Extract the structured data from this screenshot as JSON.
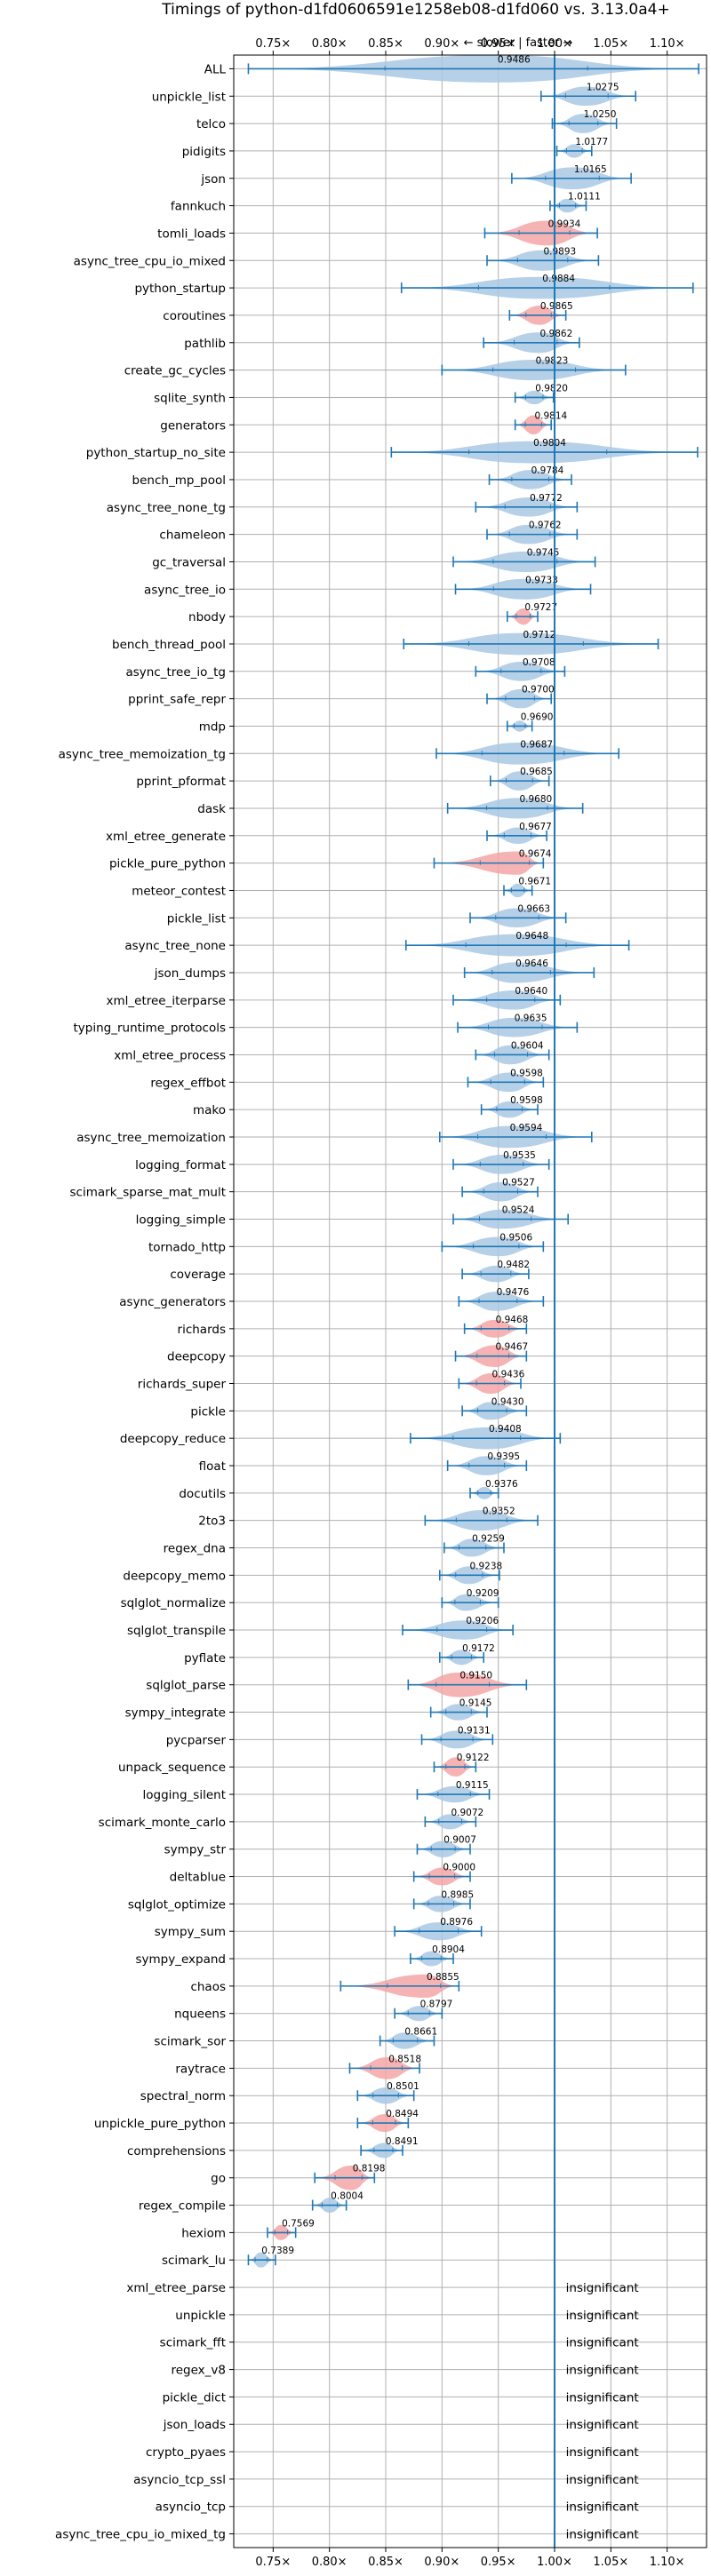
{
  "chart_data": {
    "type": "violin",
    "title": "Timings of python-d1fd0606591e1258eb08-d1fd060 vs. 3.13.0a4+",
    "annotation": "← slower | faster →",
    "xlim": [
      0.715,
      1.135
    ],
    "xticks": [
      0.75,
      0.8,
      0.85,
      0.9,
      0.95,
      1.0,
      1.05,
      1.1
    ],
    "xtick_labels": [
      "0.75×",
      "0.80×",
      "0.85×",
      "0.90×",
      "0.95×",
      "1.00×",
      "1.05×",
      "1.10×"
    ],
    "reference_line": 1.0,
    "grid": true,
    "insignificant_label": "insignificant",
    "colors": {
      "blue_fill": "#a9c8e4",
      "red_fill": "#f4a6a6",
      "line": "#1f77b4"
    },
    "benchmarks": [
      {
        "name": "ALL",
        "value": 0.9486,
        "min": 0.728,
        "max": 1.128,
        "color": "blue",
        "width": 1.0
      },
      {
        "name": "unpickle_list",
        "value": 1.0275,
        "min": 0.988,
        "max": 1.072,
        "color": "blue",
        "width": 0.7
      },
      {
        "name": "telco",
        "value": 1.025,
        "min": 0.998,
        "max": 1.055,
        "color": "blue",
        "width": 0.7
      },
      {
        "name": "pidigits",
        "value": 1.0177,
        "min": 1.002,
        "max": 1.033,
        "color": "blue",
        "width": 0.5
      },
      {
        "name": "json",
        "value": 1.0165,
        "min": 0.962,
        "max": 1.068,
        "color": "blue",
        "width": 0.8
      },
      {
        "name": "fannkuch",
        "value": 1.0111,
        "min": 0.996,
        "max": 1.028,
        "color": "blue",
        "width": 0.5
      },
      {
        "name": "tomli_loads",
        "value": 0.9934,
        "min": 0.938,
        "max": 1.038,
        "color": "red",
        "width": 0.9
      },
      {
        "name": "async_tree_cpu_io_mixed",
        "value": 0.9893,
        "min": 0.94,
        "max": 1.039,
        "color": "blue",
        "width": 0.75
      },
      {
        "name": "python_startup",
        "value": 0.9884,
        "min": 0.864,
        "max": 1.123,
        "color": "blue",
        "width": 0.8
      },
      {
        "name": "coroutines",
        "value": 0.9865,
        "min": 0.96,
        "max": 1.01,
        "color": "red",
        "width": 0.7
      },
      {
        "name": "pathlib",
        "value": 0.9862,
        "min": 0.937,
        "max": 1.022,
        "color": "blue",
        "width": 0.75
      },
      {
        "name": "create_gc_cycles",
        "value": 0.9823,
        "min": 0.9,
        "max": 1.063,
        "color": "blue",
        "width": 0.75
      },
      {
        "name": "sqlite_synth",
        "value": 0.982,
        "min": 0.965,
        "max": 0.999,
        "color": "blue",
        "width": 0.5
      },
      {
        "name": "generators",
        "value": 0.9814,
        "min": 0.965,
        "max": 0.997,
        "color": "red",
        "width": 0.7
      },
      {
        "name": "python_startup_no_site",
        "value": 0.9804,
        "min": 0.855,
        "max": 1.127,
        "color": "blue",
        "width": 0.8
      },
      {
        "name": "bench_mp_pool",
        "value": 0.9784,
        "min": 0.942,
        "max": 1.015,
        "color": "blue",
        "width": 0.7
      },
      {
        "name": "async_tree_none_tg",
        "value": 0.9772,
        "min": 0.93,
        "max": 1.02,
        "color": "blue",
        "width": 0.7
      },
      {
        "name": "chameleon",
        "value": 0.9762,
        "min": 0.94,
        "max": 1.02,
        "color": "blue",
        "width": 0.7
      },
      {
        "name": "gc_traversal",
        "value": 0.9745,
        "min": 0.91,
        "max": 1.036,
        "color": "blue",
        "width": 0.75
      },
      {
        "name": "async_tree_io",
        "value": 0.9733,
        "min": 0.912,
        "max": 1.032,
        "color": "blue",
        "width": 0.75
      },
      {
        "name": "nbody",
        "value": 0.9727,
        "min": 0.958,
        "max": 0.985,
        "color": "red",
        "width": 0.6
      },
      {
        "name": "bench_thread_pool",
        "value": 0.9712,
        "min": 0.866,
        "max": 1.092,
        "color": "blue",
        "width": 0.8
      },
      {
        "name": "async_tree_io_tg",
        "value": 0.9708,
        "min": 0.93,
        "max": 1.009,
        "color": "blue",
        "width": 0.7
      },
      {
        "name": "pprint_safe_repr",
        "value": 0.97,
        "min": 0.94,
        "max": 0.997,
        "color": "blue",
        "width": 0.7
      },
      {
        "name": "mdp",
        "value": 0.969,
        "min": 0.958,
        "max": 0.98,
        "color": "blue",
        "width": 0.4
      },
      {
        "name": "async_tree_memoization_tg",
        "value": 0.9687,
        "min": 0.895,
        "max": 1.057,
        "color": "blue",
        "width": 0.8
      },
      {
        "name": "pprint_pformat",
        "value": 0.9685,
        "min": 0.943,
        "max": 0.995,
        "color": "blue",
        "width": 0.7
      },
      {
        "name": "dask",
        "value": 0.968,
        "min": 0.905,
        "max": 1.025,
        "color": "blue",
        "width": 0.75
      },
      {
        "name": "xml_etree_generate",
        "value": 0.9677,
        "min": 0.94,
        "max": 0.993,
        "color": "blue",
        "width": 0.6
      },
      {
        "name": "pickle_pure_python",
        "value": 0.9674,
        "min": 0.893,
        "max": 0.99,
        "color": "red",
        "width": 0.85
      },
      {
        "name": "meteor_contest",
        "value": 0.9671,
        "min": 0.955,
        "max": 0.98,
        "color": "blue",
        "width": 0.5
      },
      {
        "name": "pickle_list",
        "value": 0.9663,
        "min": 0.925,
        "max": 1.01,
        "color": "blue",
        "width": 0.7
      },
      {
        "name": "async_tree_none",
        "value": 0.9648,
        "min": 0.868,
        "max": 1.066,
        "color": "blue",
        "width": 0.8
      },
      {
        "name": "json_dumps",
        "value": 0.9646,
        "min": 0.92,
        "max": 1.035,
        "color": "blue",
        "width": 0.75
      },
      {
        "name": "xml_etree_iterparse",
        "value": 0.964,
        "min": 0.91,
        "max": 1.005,
        "color": "blue",
        "width": 0.7
      },
      {
        "name": "typing_runtime_protocols",
        "value": 0.9635,
        "min": 0.914,
        "max": 1.02,
        "color": "blue",
        "width": 0.7
      },
      {
        "name": "xml_etree_process",
        "value": 0.9604,
        "min": 0.93,
        "max": 0.995,
        "color": "blue",
        "width": 0.7
      },
      {
        "name": "regex_effbot",
        "value": 0.9598,
        "min": 0.923,
        "max": 0.99,
        "color": "blue",
        "width": 0.7
      },
      {
        "name": "mako",
        "value": 0.9598,
        "min": 0.935,
        "max": 0.985,
        "color": "blue",
        "width": 0.6
      },
      {
        "name": "async_tree_memoization",
        "value": 0.9594,
        "min": 0.898,
        "max": 1.033,
        "color": "blue",
        "width": 0.8
      },
      {
        "name": "logging_format",
        "value": 0.9535,
        "min": 0.91,
        "max": 0.995,
        "color": "blue",
        "width": 0.7
      },
      {
        "name": "scimark_sparse_mat_mult",
        "value": 0.9527,
        "min": 0.918,
        "max": 0.985,
        "color": "blue",
        "width": 0.7
      },
      {
        "name": "logging_simple",
        "value": 0.9524,
        "min": 0.91,
        "max": 1.012,
        "color": "blue",
        "width": 0.7
      },
      {
        "name": "tornado_http",
        "value": 0.9506,
        "min": 0.9,
        "max": 0.99,
        "color": "blue",
        "width": 0.7
      },
      {
        "name": "coverage",
        "value": 0.9482,
        "min": 0.918,
        "max": 0.977,
        "color": "blue",
        "width": 0.6
      },
      {
        "name": "async_generators",
        "value": 0.9476,
        "min": 0.915,
        "max": 0.99,
        "color": "blue",
        "width": 0.7
      },
      {
        "name": "richards",
        "value": 0.9468,
        "min": 0.92,
        "max": 0.975,
        "color": "red",
        "width": 0.65
      },
      {
        "name": "deepcopy",
        "value": 0.9467,
        "min": 0.912,
        "max": 0.975,
        "color": "red",
        "width": 0.8
      },
      {
        "name": "richards_super",
        "value": 0.9436,
        "min": 0.915,
        "max": 0.97,
        "color": "red",
        "width": 0.75
      },
      {
        "name": "pickle",
        "value": 0.943,
        "min": 0.918,
        "max": 0.975,
        "color": "blue",
        "width": 0.65
      },
      {
        "name": "deepcopy_reduce",
        "value": 0.9408,
        "min": 0.872,
        "max": 1.005,
        "color": "blue",
        "width": 0.8
      },
      {
        "name": "float",
        "value": 0.9395,
        "min": 0.905,
        "max": 0.975,
        "color": "blue",
        "width": 0.7
      },
      {
        "name": "docutils",
        "value": 0.9376,
        "min": 0.925,
        "max": 0.95,
        "color": "blue",
        "width": 0.45
      },
      {
        "name": "2to3",
        "value": 0.9352,
        "min": 0.885,
        "max": 0.985,
        "color": "blue",
        "width": 0.75
      },
      {
        "name": "regex_dna",
        "value": 0.9259,
        "min": 0.902,
        "max": 0.955,
        "color": "blue",
        "width": 0.65
      },
      {
        "name": "deepcopy_memo",
        "value": 0.9238,
        "min": 0.898,
        "max": 0.951,
        "color": "blue",
        "width": 0.65
      },
      {
        "name": "sqlglot_normalize",
        "value": 0.9209,
        "min": 0.9,
        "max": 0.95,
        "color": "blue",
        "width": 0.6
      },
      {
        "name": "sqlglot_transpile",
        "value": 0.9206,
        "min": 0.865,
        "max": 0.963,
        "color": "blue",
        "width": 0.7
      },
      {
        "name": "pyflate",
        "value": 0.9172,
        "min": 0.898,
        "max": 0.937,
        "color": "blue",
        "width": 0.55
      },
      {
        "name": "sqlglot_parse",
        "value": 0.915,
        "min": 0.87,
        "max": 0.975,
        "color": "red",
        "width": 0.9
      },
      {
        "name": "sympy_integrate",
        "value": 0.9145,
        "min": 0.89,
        "max": 0.94,
        "color": "blue",
        "width": 0.6
      },
      {
        "name": "pycparser",
        "value": 0.9131,
        "min": 0.882,
        "max": 0.945,
        "color": "blue",
        "width": 0.65
      },
      {
        "name": "unpack_sequence",
        "value": 0.9122,
        "min": 0.893,
        "max": 0.93,
        "color": "red",
        "width": 0.7
      },
      {
        "name": "logging_silent",
        "value": 0.9115,
        "min": 0.878,
        "max": 0.942,
        "color": "blue",
        "width": 0.6
      },
      {
        "name": "scimark_monte_carlo",
        "value": 0.9072,
        "min": 0.885,
        "max": 0.93,
        "color": "blue",
        "width": 0.55
      },
      {
        "name": "sympy_str",
        "value": 0.9007,
        "min": 0.878,
        "max": 0.925,
        "color": "blue",
        "width": 0.6
      },
      {
        "name": "deltablue",
        "value": 0.9,
        "min": 0.875,
        "max": 0.925,
        "color": "red",
        "width": 0.65
      },
      {
        "name": "sqlglot_optimize",
        "value": 0.8985,
        "min": 0.875,
        "max": 0.925,
        "color": "blue",
        "width": 0.6
      },
      {
        "name": "sympy_sum",
        "value": 0.8976,
        "min": 0.858,
        "max": 0.935,
        "color": "blue",
        "width": 0.65
      },
      {
        "name": "sympy_expand",
        "value": 0.8904,
        "min": 0.872,
        "max": 0.91,
        "color": "blue",
        "width": 0.55
      },
      {
        "name": "chaos",
        "value": 0.8855,
        "min": 0.81,
        "max": 0.915,
        "color": "red",
        "width": 0.85
      },
      {
        "name": "nqueens",
        "value": 0.8797,
        "min": 0.858,
        "max": 0.9,
        "color": "blue",
        "width": 0.55
      },
      {
        "name": "scimark_sor",
        "value": 0.8661,
        "min": 0.845,
        "max": 0.893,
        "color": "blue",
        "width": 0.6
      },
      {
        "name": "raytrace",
        "value": 0.8518,
        "min": 0.818,
        "max": 0.88,
        "color": "red",
        "width": 0.8
      },
      {
        "name": "spectral_norm",
        "value": 0.8501,
        "min": 0.825,
        "max": 0.875,
        "color": "blue",
        "width": 0.6
      },
      {
        "name": "unpickle_pure_python",
        "value": 0.8494,
        "min": 0.825,
        "max": 0.87,
        "color": "red",
        "width": 0.65
      },
      {
        "name": "comprehensions",
        "value": 0.8491,
        "min": 0.828,
        "max": 0.865,
        "color": "blue",
        "width": 0.55
      },
      {
        "name": "go",
        "value": 0.8198,
        "min": 0.787,
        "max": 0.84,
        "color": "red",
        "width": 0.9
      },
      {
        "name": "regex_compile",
        "value": 0.8004,
        "min": 0.785,
        "max": 0.815,
        "color": "blue",
        "width": 0.55
      },
      {
        "name": "hexiom",
        "value": 0.7569,
        "min": 0.745,
        "max": 0.77,
        "color": "red",
        "width": 0.55
      },
      {
        "name": "scimark_lu",
        "value": 0.7389,
        "min": 0.728,
        "max": 0.752,
        "color": "blue",
        "width": 0.55
      },
      {
        "name": "xml_etree_parse",
        "insignificant": true
      },
      {
        "name": "unpickle",
        "insignificant": true
      },
      {
        "name": "scimark_fft",
        "insignificant": true
      },
      {
        "name": "regex_v8",
        "insignificant": true
      },
      {
        "name": "pickle_dict",
        "insignificant": true
      },
      {
        "name": "json_loads",
        "insignificant": true
      },
      {
        "name": "crypto_pyaes",
        "insignificant": true
      },
      {
        "name": "asyncio_tcp_ssl",
        "insignificant": true
      },
      {
        "name": "asyncio_tcp",
        "insignificant": true
      },
      {
        "name": "async_tree_cpu_io_mixed_tg",
        "insignificant": true
      }
    ]
  }
}
